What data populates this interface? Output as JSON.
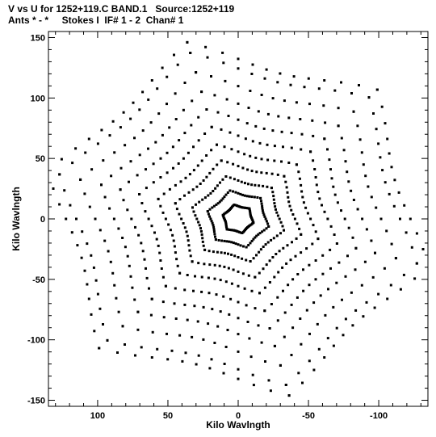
{
  "chart_data": {
    "type": "scatter",
    "title_line1": "V vs U for 1252+119.C BAND.1   Source:1252+119",
    "title_line2": "Ants * - *     Stokes I  IF# 1 - 2  Chan# 1",
    "xlabel": "Kilo Wavlngth",
    "ylabel": "Kilo Wavlngth",
    "xlim": [
      135,
      -135
    ],
    "ylim": [
      -155,
      155
    ],
    "x_ticks": [
      "100",
      "50",
      "0",
      "-50",
      "-100"
    ],
    "x_tick_values": [
      100,
      50,
      0,
      -50,
      -100
    ],
    "y_ticks": [
      "150",
      "100",
      "50",
      "0",
      "-50",
      "-100",
      "-150"
    ],
    "y_tick_values": [
      150,
      100,
      50,
      0,
      -50,
      -100,
      -150
    ],
    "grid": false,
    "pattern": {
      "description_free_generator": true,
      "arm_angles_deg": [
        -15,
        45,
        105
      ],
      "baseline_scales": [
        0.08,
        0.16,
        0.24,
        0.33,
        0.42,
        0.52,
        0.62,
        0.72,
        0.83,
        0.94,
        1.0
      ],
      "max_radius": 140,
      "hour_angle_steps": 13,
      "hour_angle_span_deg": 60
    },
    "marker_color": "#000000"
  }
}
